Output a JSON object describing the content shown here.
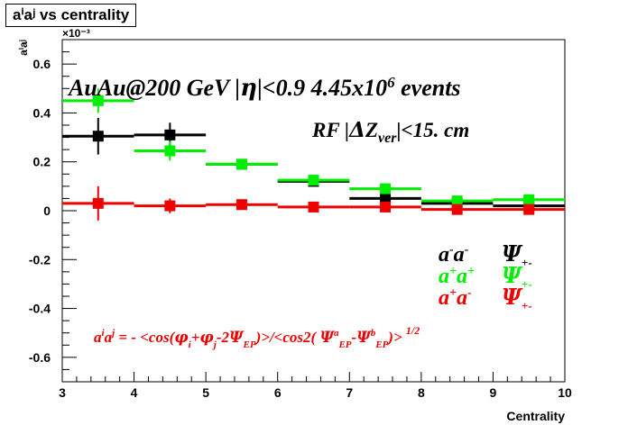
{
  "title": "aⁱaʲ vs centrality",
  "chart_data": {
    "type": "scatter",
    "title": "aⁱaʲ vs centrality",
    "xlabel": "Centrality",
    "ylabel": "aⁱaʲ",
    "y_multiplier": "×10⁻³",
    "xlim": [
      3,
      10
    ],
    "ylim": [
      -0.7,
      0.7
    ],
    "x_ticks": [
      "3",
      "4",
      "5",
      "6",
      "7",
      "8",
      "9",
      "10"
    ],
    "y_ticks": [
      "-0.6",
      "-0.4",
      "-0.2",
      "0",
      "0.2",
      "0.4",
      "0.6"
    ],
    "y_tick_values": [
      -0.6,
      -0.4,
      -0.2,
      0,
      0.2,
      0.4,
      0.6
    ],
    "series": [
      {
        "name": "a⁻a⁻ Ψ₊₋",
        "color": "#000000",
        "x": [
          3.5,
          4.5,
          5.5,
          6.5,
          7.5,
          8.5,
          9.5
        ],
        "y": [
          0.305,
          0.31,
          0.19,
          0.12,
          0.05,
          0.03,
          0.02
        ],
        "err": [
          0.075,
          0.05,
          0.02,
          0.02,
          0.015,
          0.015,
          0.015
        ]
      },
      {
        "name": "a⁺a⁺ Ψ₊₋",
        "color": "#00ee00",
        "x": [
          3.5,
          4.5,
          5.5,
          6.5,
          7.5,
          8.5,
          9.5
        ],
        "y": [
          0.45,
          0.245,
          0.19,
          0.125,
          0.09,
          0.04,
          0.045
        ],
        "err": [
          0.05,
          0.04,
          0.02,
          0.02,
          0.015,
          0.015,
          0.015
        ]
      },
      {
        "name": "a⁺a⁻ Ψ₊₋",
        "color": "#ee0000",
        "x": [
          3.5,
          4.5,
          5.5,
          6.5,
          7.5,
          8.5,
          9.5
        ],
        "y": [
          0.03,
          0.02,
          0.025,
          0.015,
          0.015,
          0.005,
          0.005
        ],
        "err": [
          0.07,
          0.03,
          0.02,
          0.015,
          0.015,
          0.01,
          0.01
        ]
      }
    ],
    "annotations": [
      "AuAu@200 GeV |η|<0.9 4.45x10⁶ events",
      "RF |ΔZ_ver|<15. cm",
      "aⁱaʲ = - <cos(φᵢ+φⱼ-2Ψ_EP)>/<cos2(Ψᵃ_EP-Ψᵇ_EP)>^1/2"
    ],
    "legend_position": "right"
  }
}
